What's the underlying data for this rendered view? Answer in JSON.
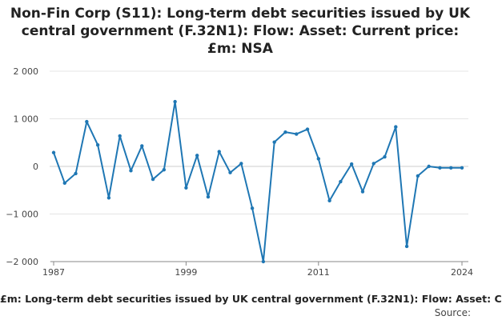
{
  "chart_data": {
    "type": "line",
    "title_lines": [
      "Non-Fin Corp (S11): Long-term debt securities issued by UK",
      "central government (F.32N1): Flow: Asset: Current price:",
      "£m: NSA"
    ],
    "x": [
      1987,
      1988,
      1989,
      1990,
      1991,
      1992,
      1993,
      1994,
      1995,
      1996,
      1997,
      1998,
      1999,
      2000,
      2001,
      2002,
      2003,
      2004,
      2005,
      2006,
      2007,
      2008,
      2009,
      2010,
      2011,
      2012,
      2013,
      2014,
      2015,
      2016,
      2017,
      2018,
      2019,
      2020,
      2021,
      2022,
      2023,
      2024
    ],
    "series": [
      {
        "values": [
          290,
          -350,
          -150,
          940,
          450,
          -660,
          640,
          -90,
          430,
          -270,
          -70,
          1360,
          -450,
          230,
          -640,
          310,
          -130,
          60,
          -880,
          -2000,
          510,
          720,
          680,
          780,
          160,
          -720,
          -320,
          50,
          -530,
          60,
          200,
          830,
          -1680,
          -200,
          0,
          -30,
          -30,
          -30
        ],
        "color": "#1f77b4"
      }
    ],
    "ylim": [
      -2000,
      2000
    ],
    "yticks": [
      2000,
      1000,
      0,
      -1000,
      -2000
    ],
    "ytick_labels": [
      "2 000",
      "1 000",
      "0",
      "−1 000",
      "−2 000"
    ],
    "xticks": [
      1987,
      1999,
      2011,
      2024
    ],
    "xtick_labels": [
      "1987",
      "1999",
      "2011",
      "2024"
    ],
    "grid": true,
    "legend_text": "£m: Long-term debt securities issued by UK central government (F.32N1): Flow: Asset: C",
    "source_text": "Source:"
  }
}
